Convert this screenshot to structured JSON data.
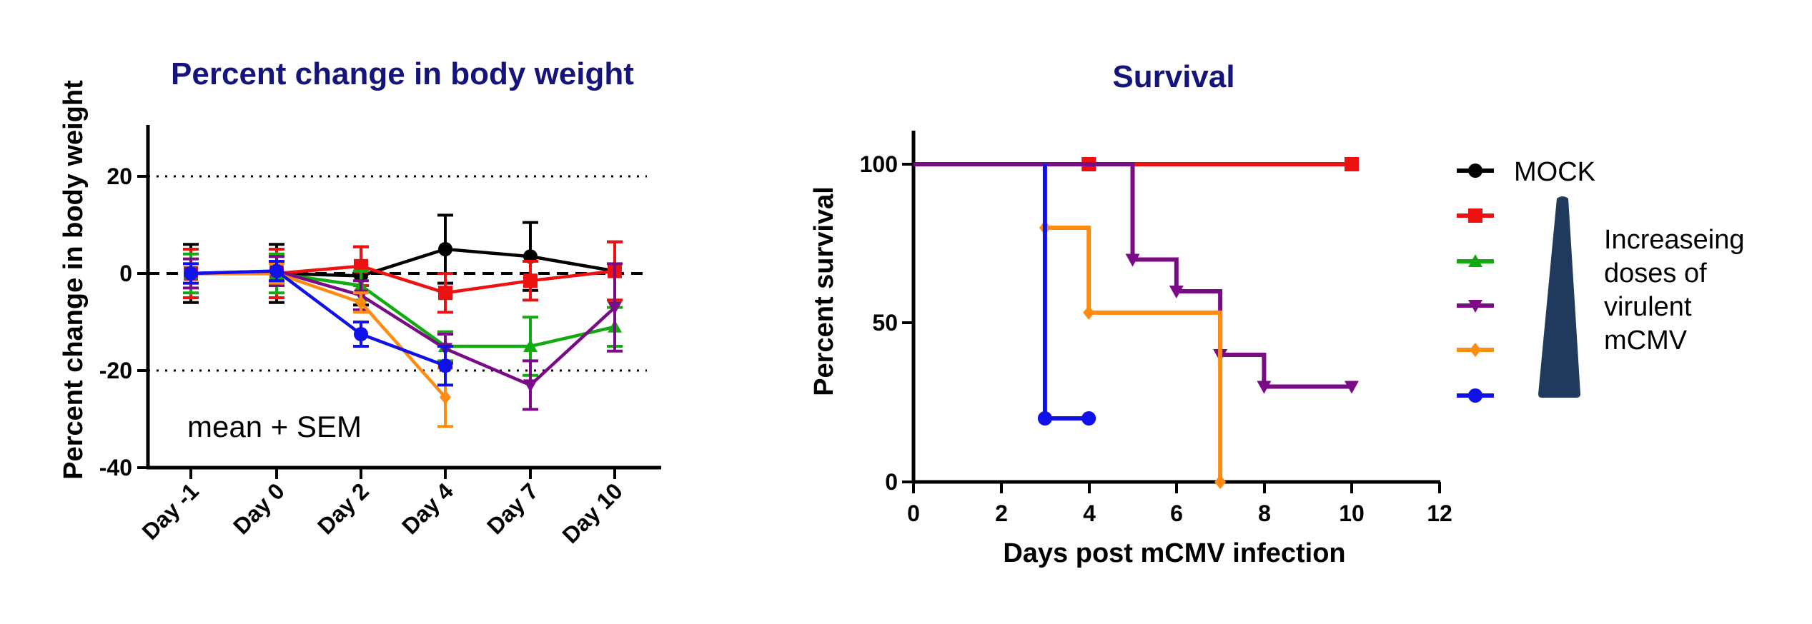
{
  "colors": {
    "title": "#14147a",
    "mock": "#000000",
    "red": "#ee1111",
    "green": "#11aa11",
    "purple": "#7a0a86",
    "orange": "#ff8c10",
    "blue": "#1010e8",
    "wedge": "#1f3a5c"
  },
  "chart_data": [
    {
      "type": "line",
      "title": "Percent change in body weight",
      "ylabel": "Percent change in body weight",
      "xlabel": "",
      "categories": [
        "Day -1",
        "Day 0",
        "Day 2",
        "Day 4",
        "Day 7",
        "Day 10"
      ],
      "ylim": [
        -40,
        30
      ],
      "yticks": [
        "20",
        "0",
        "-20",
        "-40"
      ],
      "ytick_values": [
        20,
        0,
        -20,
        -40
      ],
      "reference_lines": [
        20,
        0,
        -20
      ],
      "annotation": "mean + SEM",
      "series": [
        {
          "key": "mock",
          "marker": "circle",
          "values": [
            0,
            0,
            -0.5,
            5,
            3.5,
            0.5
          ],
          "errors": [
            6,
            6,
            6,
            7,
            7,
            6
          ]
        },
        {
          "key": "red",
          "marker": "square",
          "values": [
            0,
            0,
            1.5,
            -4,
            -1.5,
            0.5
          ],
          "errors": [
            5,
            5,
            4,
            4,
            4,
            6
          ]
        },
        {
          "key": "green",
          "marker": "triangle",
          "values": [
            0,
            0,
            -2.5,
            -15,
            -15,
            -11
          ],
          "errors": [
            4,
            4,
            3,
            3,
            6,
            4
          ]
        },
        {
          "key": "purple",
          "marker": "tri-down",
          "values": [
            0,
            0.5,
            -4.5,
            -15.5,
            -23,
            -7
          ],
          "errors": [
            3,
            3,
            3,
            3,
            5,
            9
          ]
        },
        {
          "key": "orange",
          "marker": "diamond",
          "values": [
            0,
            0,
            -6,
            -25.5,
            null,
            null
          ],
          "errors": [
            2,
            2,
            2,
            6,
            0,
            0
          ]
        },
        {
          "key": "blue",
          "marker": "circle",
          "values": [
            0,
            0.5,
            -12.5,
            -19,
            null,
            null
          ],
          "errors": [
            2,
            2,
            2.5,
            4,
            0,
            0
          ]
        }
      ]
    },
    {
      "type": "line",
      "subtype": "survival-step",
      "title": "Survival",
      "xlabel": "Days post mCMV infection",
      "ylabel": "Percent survival",
      "xlim": [
        0,
        12
      ],
      "ylim": [
        0,
        110
      ],
      "xticks": [
        "0",
        "2",
        "4",
        "6",
        "8",
        "10",
        "12"
      ],
      "xtick_values": [
        0,
        2,
        4,
        6,
        8,
        10,
        12
      ],
      "yticks": [
        "100",
        "50",
        "0"
      ],
      "ytick_values": [
        100,
        50,
        0
      ],
      "series": [
        {
          "key": "mock",
          "name": "MOCK",
          "marker": "circle",
          "steps": [
            [
              0,
              100
            ],
            [
              10,
              100
            ]
          ],
          "points": [
            [
              10,
              100
            ]
          ]
        },
        {
          "key": "red",
          "name": "",
          "marker": "square",
          "steps": [
            [
              0,
              100
            ],
            [
              10,
              100
            ]
          ],
          "points": [
            [
              4,
              100
            ],
            [
              10,
              100
            ]
          ]
        },
        {
          "key": "purple",
          "name": "",
          "marker": "tri-down",
          "steps": [
            [
              0,
              100
            ],
            [
              5,
              100
            ],
            [
              5,
              70
            ],
            [
              6,
              70
            ],
            [
              6,
              60
            ],
            [
              7,
              60
            ],
            [
              7,
              40
            ],
            [
              8,
              40
            ],
            [
              8,
              30
            ],
            [
              10,
              30
            ]
          ],
          "points": [
            [
              5,
              70
            ],
            [
              6,
              60
            ],
            [
              7,
              40
            ],
            [
              8,
              30
            ],
            [
              10,
              30
            ]
          ]
        },
        {
          "key": "orange",
          "name": "",
          "marker": "diamond",
          "steps": [
            [
              3,
              80
            ],
            [
              4,
              80
            ],
            [
              4,
              53.3
            ],
            [
              7,
              53.3
            ],
            [
              7,
              0
            ]
          ],
          "points": [
            [
              3,
              80
            ],
            [
              4,
              53.3
            ],
            [
              7,
              0
            ]
          ]
        },
        {
          "key": "blue",
          "name": "",
          "marker": "circle",
          "steps": [
            [
              3,
              100
            ],
            [
              3,
              20
            ],
            [
              4,
              20
            ]
          ],
          "points": [
            [
              3,
              20
            ],
            [
              4,
              20
            ]
          ]
        }
      ],
      "legend": {
        "position": "right",
        "entries": [
          {
            "key": "mock",
            "marker": "circle",
            "label": "MOCK"
          },
          {
            "key": "red",
            "marker": "square",
            "label": ""
          },
          {
            "key": "green",
            "marker": "triangle",
            "label": ""
          },
          {
            "key": "purple",
            "marker": "tri-down",
            "label": ""
          },
          {
            "key": "orange",
            "marker": "diamond",
            "label": ""
          },
          {
            "key": "blue",
            "marker": "circle",
            "label": ""
          }
        ],
        "annotation_lines": [
          "Increaseing",
          "doses of",
          "virulent",
          "mCMV"
        ]
      }
    }
  ]
}
